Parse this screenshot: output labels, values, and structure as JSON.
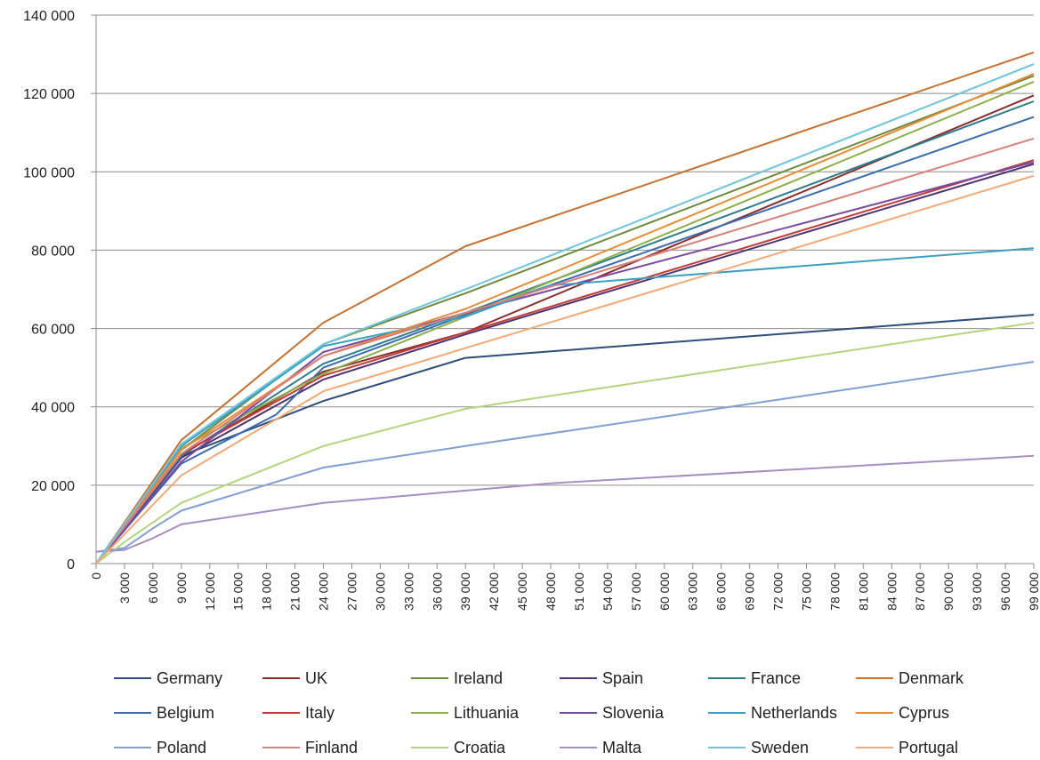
{
  "chart_data": {
    "type": "line",
    "title": "",
    "xlabel": "",
    "ylabel": "",
    "xlim": [
      0,
      99000
    ],
    "ylim": [
      0,
      140000
    ],
    "y_ticks": [
      0,
      20000,
      40000,
      60000,
      80000,
      100000,
      120000,
      140000
    ],
    "y_tick_labels": [
      "0",
      "20 000",
      "40 000",
      "60 000",
      "80 000",
      "100 000",
      "120 000",
      "140 000"
    ],
    "x_tick_labels": [
      "0",
      "3 000",
      "6 000",
      "9 000",
      "12 000",
      "15 000",
      "18 000",
      "21 000",
      "24 000",
      "27 000",
      "30 000",
      "33 000",
      "36 000",
      "39 000",
      "42 000",
      "45 000",
      "48 000",
      "51 000",
      "54 000",
      "57 000",
      "60 000",
      "63 000",
      "66 000",
      "69 000",
      "72 000",
      "75 000",
      "78 000",
      "81 000",
      "84 000",
      "87 000",
      "90 000",
      "93 000",
      "96 000",
      "99 000"
    ],
    "grid": "horizontal",
    "legend_position": "bottom",
    "series": [
      {
        "name": "Germany",
        "color": "#2e4d7b",
        "points": [
          [
            0,
            0
          ],
          [
            9000,
            27500
          ],
          [
            24000,
            41500
          ],
          [
            39000,
            52500
          ],
          [
            99000,
            63500
          ]
        ]
      },
      {
        "name": "UK",
        "color": "#8b2d2a",
        "points": [
          [
            0,
            0
          ],
          [
            9000,
            27800
          ],
          [
            24000,
            49000
          ],
          [
            39000,
            59000
          ],
          [
            99000,
            119500
          ]
        ]
      },
      {
        "name": "Ireland",
        "color": "#6e8b3d",
        "points": [
          [
            0,
            0
          ],
          [
            9000,
            29000
          ],
          [
            24000,
            56000
          ],
          [
            39000,
            69000
          ],
          [
            99000,
            124500
          ]
        ]
      },
      {
        "name": "Spain",
        "color": "#4e3470",
        "points": [
          [
            0,
            0
          ],
          [
            9000,
            27000
          ],
          [
            24000,
            47000
          ],
          [
            39000,
            58500
          ],
          [
            99000,
            102000
          ]
        ]
      },
      {
        "name": "France",
        "color": "#2e7c8f",
        "points": [
          [
            0,
            0
          ],
          [
            9000,
            27500
          ],
          [
            24000,
            51000
          ],
          [
            39000,
            64000
          ],
          [
            99000,
            118000
          ]
        ]
      },
      {
        "name": "Denmark",
        "color": "#c8702e",
        "points": [
          [
            0,
            0
          ],
          [
            9000,
            31500
          ],
          [
            24000,
            61500
          ],
          [
            39000,
            81000
          ],
          [
            99000,
            130500
          ]
        ]
      },
      {
        "name": "Belgium",
        "color": "#3b6cb0",
        "points": [
          [
            0,
            0
          ],
          [
            9000,
            25500
          ],
          [
            19000,
            38000
          ],
          [
            24000,
            50000
          ],
          [
            39000,
            63500
          ],
          [
            99000,
            114000
          ]
        ]
      },
      {
        "name": "Italy",
        "color": "#c23b36",
        "points": [
          [
            0,
            0
          ],
          [
            9000,
            28000
          ],
          [
            24000,
            48000
          ],
          [
            39000,
            59000
          ],
          [
            99000,
            103000
          ]
        ]
      },
      {
        "name": "Lithuania",
        "color": "#8db04a",
        "points": [
          [
            0,
            0
          ],
          [
            9000,
            29500
          ],
          [
            24000,
            48500
          ],
          [
            39000,
            63000
          ],
          [
            99000,
            123000
          ]
        ]
      },
      {
        "name": "Slovenia",
        "color": "#7a4aa0",
        "points": [
          [
            0,
            0
          ],
          [
            9000,
            26000
          ],
          [
            24000,
            54000
          ],
          [
            39000,
            64000
          ],
          [
            99000,
            102500
          ]
        ]
      },
      {
        "name": "Netherlands",
        "color": "#3aa0c0",
        "points": [
          [
            0,
            0
          ],
          [
            9000,
            30000
          ],
          [
            24000,
            55500
          ],
          [
            39000,
            63000
          ],
          [
            48000,
            71000
          ],
          [
            99000,
            80500
          ]
        ]
      },
      {
        "name": "Cyprus",
        "color": "#e98b36",
        "points": [
          [
            0,
            0
          ],
          [
            9000,
            29000
          ],
          [
            24000,
            53000
          ],
          [
            39000,
            65000
          ],
          [
            99000,
            125000
          ]
        ]
      },
      {
        "name": "Poland",
        "color": "#7f9fd3",
        "points": [
          [
            0,
            3000
          ],
          [
            3000,
            4000
          ],
          [
            6000,
            9000
          ],
          [
            9000,
            13500
          ],
          [
            24000,
            24500
          ],
          [
            39000,
            30000
          ],
          [
            99000,
            51500
          ]
        ]
      },
      {
        "name": "Finland",
        "color": "#d9807b",
        "points": [
          [
            0,
            0
          ],
          [
            9000,
            28000
          ],
          [
            24000,
            53000
          ],
          [
            39000,
            64000
          ],
          [
            99000,
            108500
          ]
        ]
      },
      {
        "name": "Croatia",
        "color": "#b3d57e",
        "points": [
          [
            0,
            0
          ],
          [
            3000,
            5500
          ],
          [
            9000,
            15500
          ],
          [
            24000,
            30000
          ],
          [
            39000,
            39500
          ],
          [
            99000,
            61500
          ]
        ]
      },
      {
        "name": "Malta",
        "color": "#a78dc3",
        "points": [
          [
            0,
            3000
          ],
          [
            3000,
            3500
          ],
          [
            6000,
            6500
          ],
          [
            9000,
            10000
          ],
          [
            24000,
            15500
          ],
          [
            48000,
            20500
          ],
          [
            99000,
            27500
          ]
        ]
      },
      {
        "name": "Sweden",
        "color": "#6ec5de",
        "points": [
          [
            0,
            0
          ],
          [
            9000,
            30500
          ],
          [
            24000,
            56000
          ],
          [
            39000,
            70000
          ],
          [
            99000,
            127500
          ]
        ]
      },
      {
        "name": "Portugal",
        "color": "#f4a974",
        "points": [
          [
            0,
            0
          ],
          [
            9000,
            22500
          ],
          [
            24000,
            44000
          ],
          [
            39000,
            55000
          ],
          [
            99000,
            99000
          ]
        ]
      }
    ]
  }
}
